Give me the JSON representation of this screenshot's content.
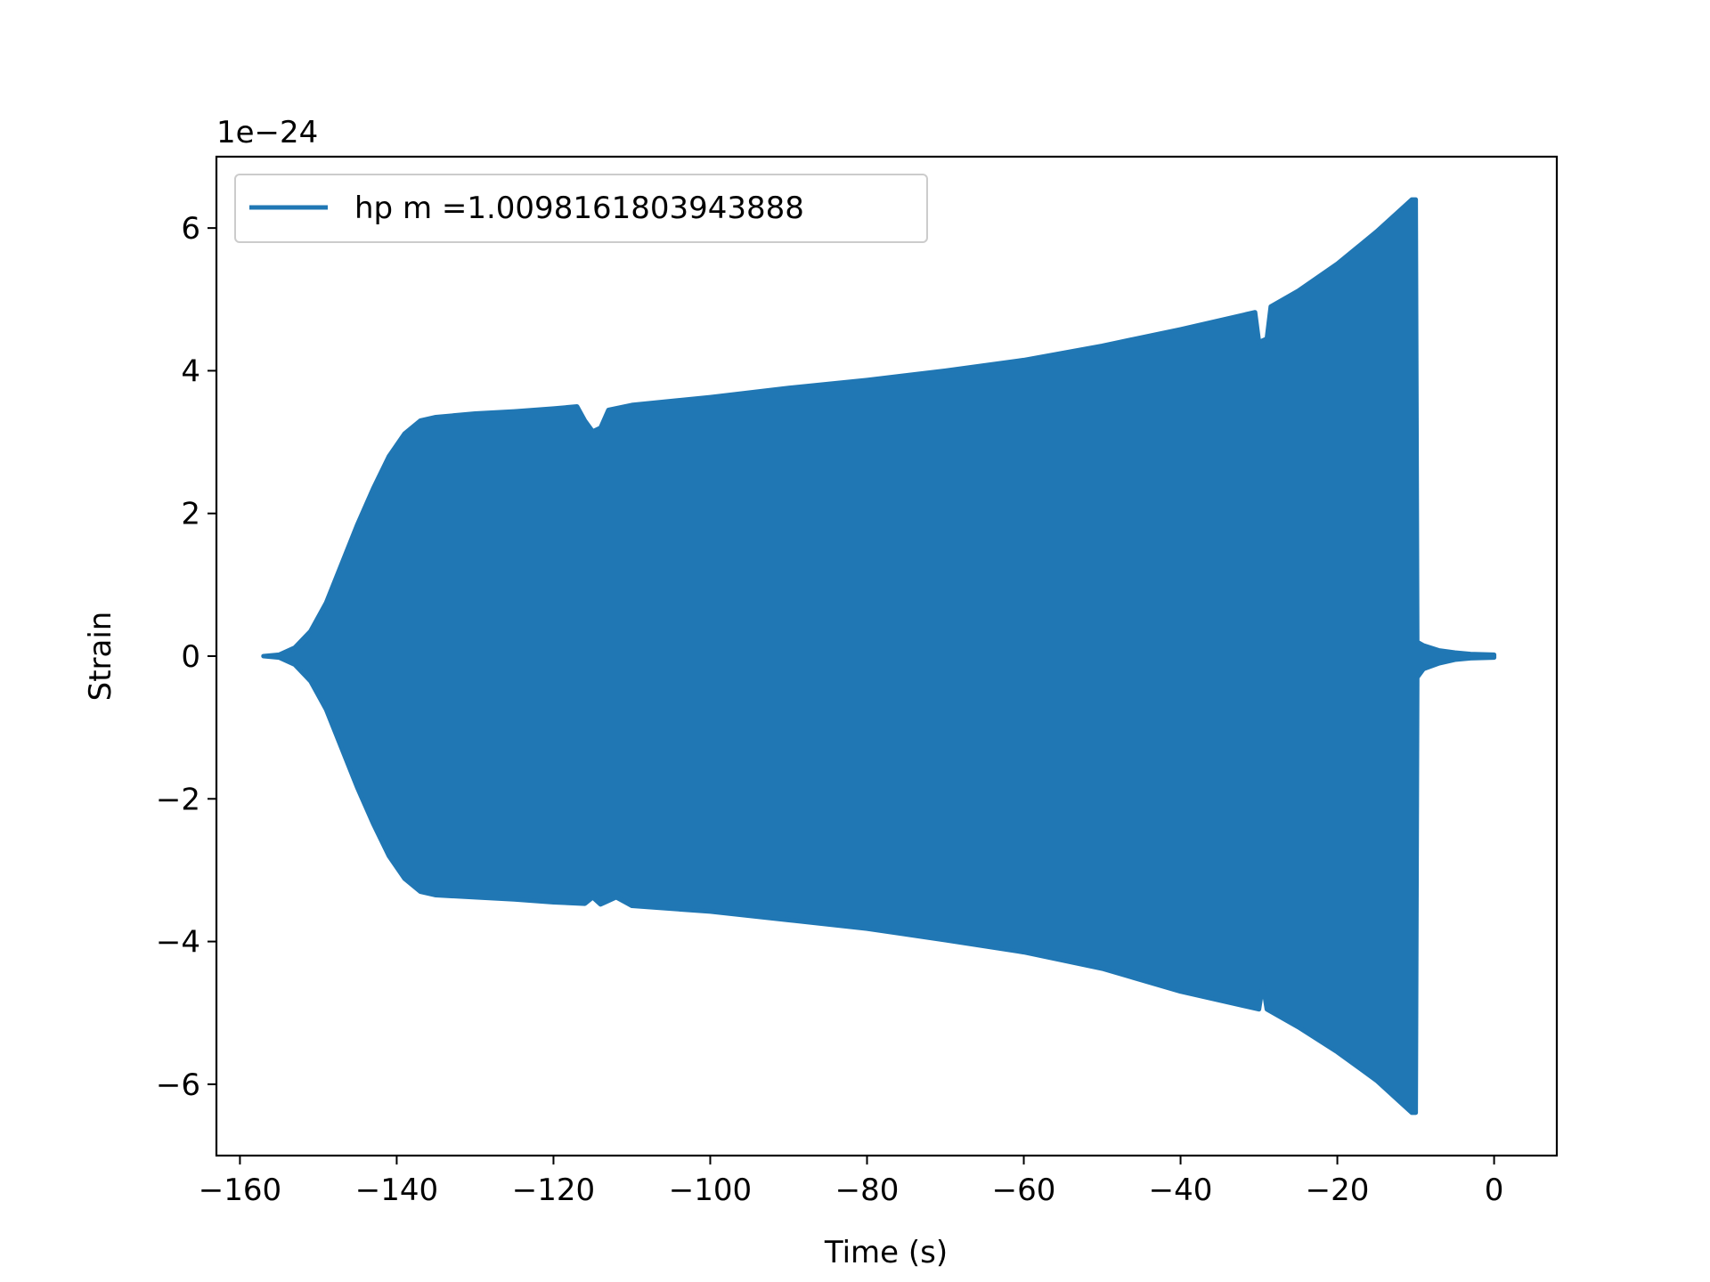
{
  "chart_data": {
    "type": "line",
    "title": "",
    "xlabel": "Time (s)",
    "ylabel": "Strain",
    "y_offset_label": "1e−24",
    "xlim": [
      -163,
      8
    ],
    "ylim": [
      -7,
      7
    ],
    "xticks": [
      -160,
      -140,
      -120,
      -100,
      -80,
      -60,
      -40,
      -20,
      0
    ],
    "xtick_labels": [
      "−160",
      "−140",
      "−120",
      "−100",
      "−80",
      "−60",
      "−40",
      "−20",
      "0"
    ],
    "yticks": [
      -6,
      -4,
      -2,
      0,
      2,
      4,
      6
    ],
    "ytick_labels": [
      "−6",
      "−4",
      "−2",
      "0",
      "2",
      "4",
      "6"
    ],
    "grid": false,
    "legend_position": "top-left",
    "series": [
      {
        "name": "hp m =1.0098161803943888",
        "color": "#2077b4",
        "description_type": "oscillating chirp envelope",
        "upper_envelope": [
          [
            -157,
            0.0
          ],
          [
            -155,
            0.02
          ],
          [
            -153,
            0.12
          ],
          [
            -151,
            0.35
          ],
          [
            -149,
            0.75
          ],
          [
            -147,
            1.3
          ],
          [
            -145,
            1.85
          ],
          [
            -143,
            2.35
          ],
          [
            -141,
            2.8
          ],
          [
            -139,
            3.12
          ],
          [
            -137,
            3.3
          ],
          [
            -135,
            3.35
          ],
          [
            -130,
            3.4
          ],
          [
            -125,
            3.43
          ],
          [
            -120,
            3.47
          ],
          [
            -117,
            3.5
          ],
          [
            -116,
            3.3
          ],
          [
            -115,
            3.15
          ],
          [
            -114,
            3.2
          ],
          [
            -113,
            3.45
          ],
          [
            -110,
            3.52
          ],
          [
            -100,
            3.63
          ],
          [
            -90,
            3.76
          ],
          [
            -80,
            3.87
          ],
          [
            -70,
            4.0
          ],
          [
            -60,
            4.15
          ],
          [
            -50,
            4.35
          ],
          [
            -40,
            4.58
          ],
          [
            -30.5,
            4.82
          ],
          [
            -30,
            4.4
          ],
          [
            -29,
            4.45
          ],
          [
            -28.5,
            4.9
          ],
          [
            -25,
            5.12
          ],
          [
            -20,
            5.5
          ],
          [
            -15,
            5.95
          ],
          [
            -12,
            6.25
          ],
          [
            -10.5,
            6.4
          ],
          [
            -10,
            6.4
          ],
          [
            -9.8,
            0.2
          ],
          [
            -9,
            0.15
          ],
          [
            -7,
            0.08
          ],
          [
            -5,
            0.05
          ],
          [
            -3,
            0.03
          ],
          [
            0,
            0.02
          ]
        ],
        "lower_envelope": [
          [
            -157,
            0.0
          ],
          [
            -155,
            -0.02
          ],
          [
            -153,
            -0.12
          ],
          [
            -151,
            -0.35
          ],
          [
            -149,
            -0.75
          ],
          [
            -147,
            -1.3
          ],
          [
            -145,
            -1.85
          ],
          [
            -143,
            -2.35
          ],
          [
            -141,
            -2.8
          ],
          [
            -139,
            -3.12
          ],
          [
            -137,
            -3.3
          ],
          [
            -135,
            -3.35
          ],
          [
            -130,
            -3.38
          ],
          [
            -125,
            -3.41
          ],
          [
            -120,
            -3.45
          ],
          [
            -116,
            -3.47
          ],
          [
            -115,
            -3.38
          ],
          [
            -114,
            -3.48
          ],
          [
            -112,
            -3.38
          ],
          [
            -110,
            -3.5
          ],
          [
            -100,
            -3.58
          ],
          [
            -90,
            -3.7
          ],
          [
            -80,
            -3.82
          ],
          [
            -70,
            -3.98
          ],
          [
            -60,
            -4.15
          ],
          [
            -50,
            -4.38
          ],
          [
            -40,
            -4.7
          ],
          [
            -30,
            -4.95
          ],
          [
            -29.5,
            -4.6
          ],
          [
            -29,
            -4.95
          ],
          [
            -25,
            -5.2
          ],
          [
            -20,
            -5.55
          ],
          [
            -15,
            -5.95
          ],
          [
            -12,
            -6.25
          ],
          [
            -10.5,
            -6.4
          ],
          [
            -10,
            -6.4
          ],
          [
            -9.8,
            -0.3
          ],
          [
            -9,
            -0.18
          ],
          [
            -7,
            -0.1
          ],
          [
            -5,
            -0.05
          ],
          [
            -3,
            -0.03
          ],
          [
            0,
            -0.02
          ]
        ]
      }
    ]
  }
}
